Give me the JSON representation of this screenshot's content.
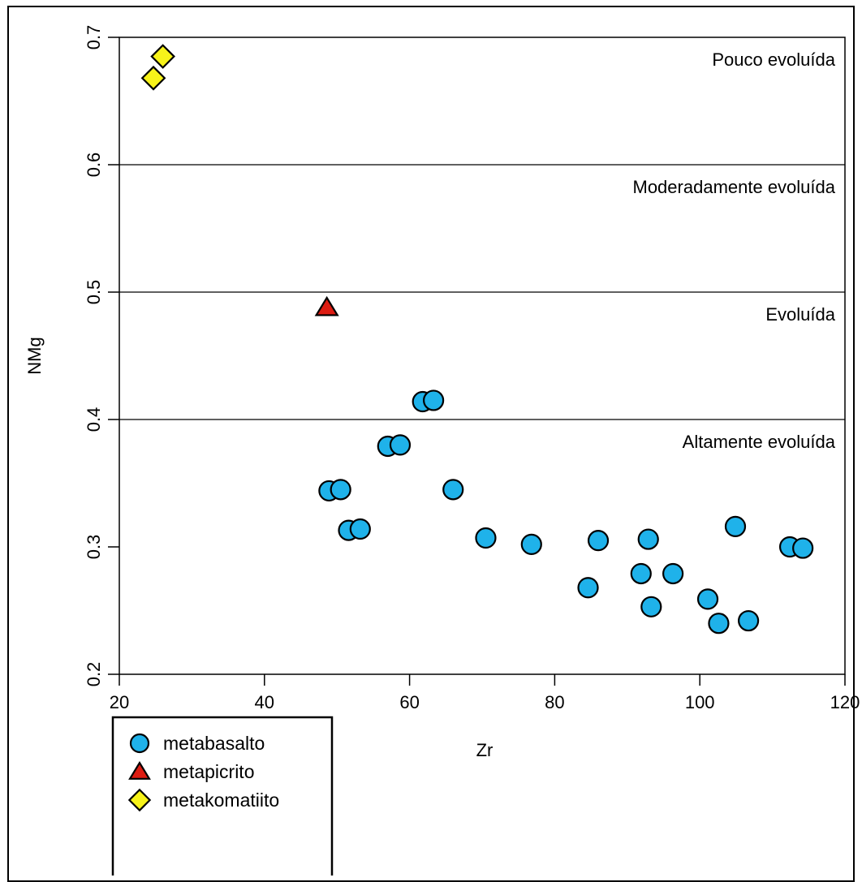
{
  "chart_data": {
    "type": "scatter",
    "xlabel": "Zr",
    "ylabel": "NMg",
    "xlim": [
      20,
      120
    ],
    "ylim": [
      0.2,
      0.7
    ],
    "x_ticks": [
      "20",
      "40",
      "60",
      "80",
      "100",
      "120"
    ],
    "y_ticks": [
      "0.2",
      "0.3",
      "0.4",
      "0.5",
      "0.6",
      "0.7"
    ],
    "reference_lines": [
      0.4,
      0.5,
      0.6
    ],
    "zone_labels": [
      "Pouco evoluída",
      "Moderadamente evoluída",
      "Evoluída",
      "Altamente evoluída"
    ],
    "legend_position": "bottom-left",
    "series": [
      {
        "name": "metabasalto",
        "marker": "circle",
        "color": "#1fb2ea",
        "points": [
          [
            61.8,
            0.414
          ],
          [
            63.3,
            0.415
          ],
          [
            57.0,
            0.379
          ],
          [
            58.7,
            0.38
          ],
          [
            48.9,
            0.344
          ],
          [
            50.5,
            0.345
          ],
          [
            51.6,
            0.313
          ],
          [
            53.2,
            0.314
          ],
          [
            66.0,
            0.345
          ],
          [
            70.5,
            0.307
          ],
          [
            76.8,
            0.302
          ],
          [
            86.0,
            0.305
          ],
          [
            84.6,
            0.268
          ],
          [
            92.9,
            0.306
          ],
          [
            91.9,
            0.279
          ],
          [
            96.3,
            0.279
          ],
          [
            93.3,
            0.253
          ],
          [
            101.1,
            0.259
          ],
          [
            102.6,
            0.24
          ],
          [
            106.7,
            0.242
          ],
          [
            104.9,
            0.316
          ],
          [
            112.4,
            0.3
          ],
          [
            114.2,
            0.299
          ]
        ]
      },
      {
        "name": "metapicrito",
        "marker": "triangle",
        "color": "#dd1c12",
        "points": [
          [
            48.6,
            0.488
          ]
        ]
      },
      {
        "name": "metakomatiito",
        "marker": "diamond",
        "color": "#f7f31a",
        "points": [
          [
            26.0,
            0.685
          ],
          [
            24.7,
            0.668
          ]
        ]
      }
    ]
  }
}
